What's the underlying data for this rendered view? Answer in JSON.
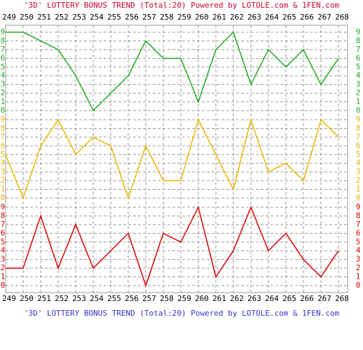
{
  "chart_data": {
    "type": "line",
    "title": "'3D' LOTTERY BONUS TREND (Total:20)  Powered by LOTOLE.com & 1FEN.com",
    "title_color": "#cc0033",
    "footer_color": "#3333cc",
    "categories": [
      "249",
      "250",
      "251",
      "252",
      "253",
      "254",
      "255",
      "256",
      "257",
      "258",
      "259",
      "260",
      "261",
      "262",
      "263",
      "264",
      "265",
      "266",
      "267",
      "268"
    ],
    "ylim": [
      0,
      9
    ],
    "yticks": [
      0,
      1,
      2,
      3,
      4,
      5,
      6,
      7,
      8,
      9
    ],
    "grid": true,
    "series": [
      {
        "color": "#22aa22",
        "values": [
          9,
          9,
          8,
          7,
          4,
          0,
          2,
          4,
          8,
          6,
          6,
          1,
          7,
          9,
          3,
          7,
          5,
          7,
          3,
          6
        ]
      },
      {
        "color": "#eeb400",
        "values": [
          5,
          0,
          6,
          9,
          5,
          7,
          6,
          0,
          6,
          2,
          2,
          9,
          5,
          1,
          9,
          3,
          4,
          2,
          9,
          7
        ]
      },
      {
        "color": "#dd0000",
        "values": [
          2,
          2,
          8,
          2,
          7,
          2,
          4,
          6,
          0,
          6,
          5,
          9,
          1,
          4,
          9,
          4,
          6,
          3,
          1,
          4
        ]
      }
    ]
  }
}
